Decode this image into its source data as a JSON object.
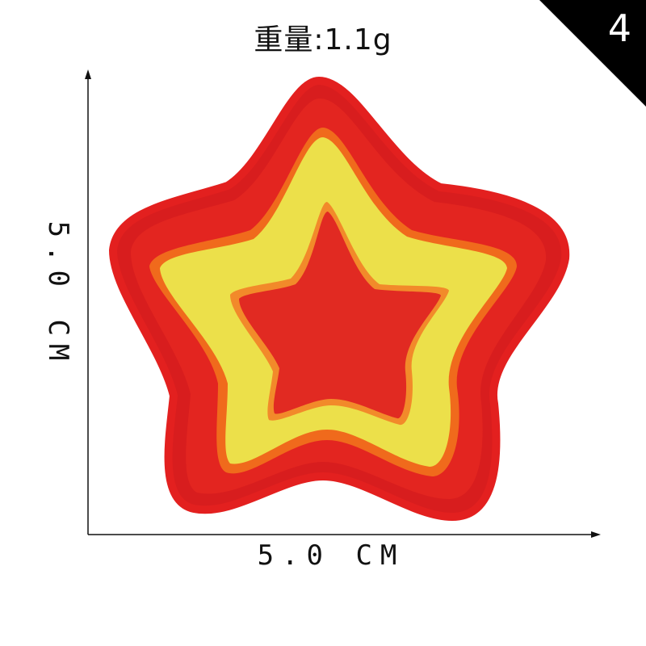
{
  "weight_label": "重量:1.1g",
  "badge_number": "4",
  "dimension_width": "5.0 CM",
  "dimension_height": "5.0 CM",
  "colors": {
    "patch_red": "#e3201f",
    "patch_red_dark": "#c8161a",
    "stitch_orange": "#f06a1c",
    "stitch_yellow": "#ece04a",
    "badge_black": "#000000"
  },
  "icons": [
    "star-patch-image"
  ]
}
